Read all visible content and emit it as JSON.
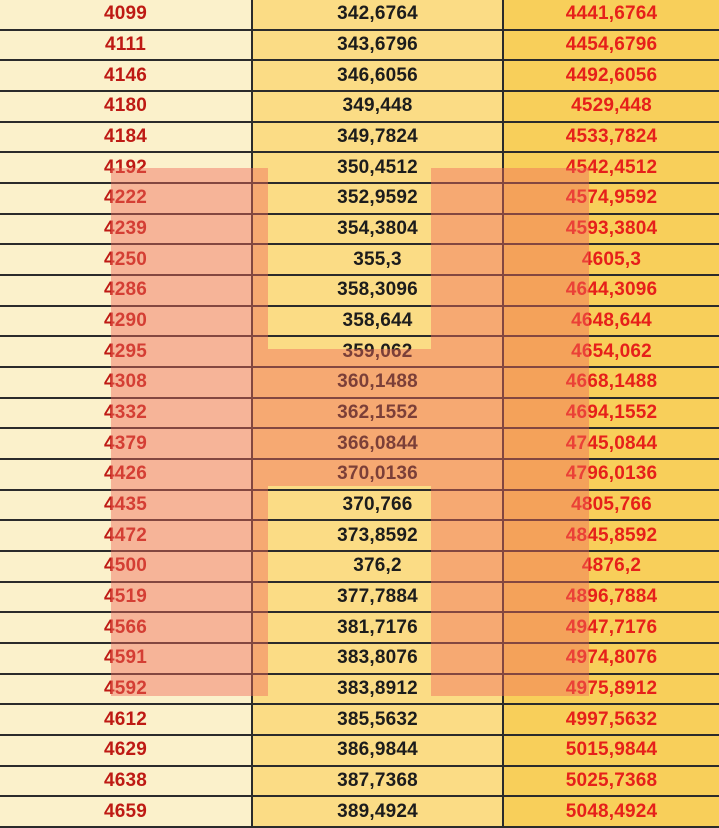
{
  "table": {
    "row_count": 27,
    "rows": [
      [
        "4099",
        "342,6764",
        "4441,6764"
      ],
      [
        "4111",
        "343,6796",
        "4454,6796"
      ],
      [
        "4146",
        "346,6056",
        "4492,6056"
      ],
      [
        "4180",
        "349,448",
        "4529,448"
      ],
      [
        "4184",
        "349,7824",
        "4533,7824"
      ],
      [
        "4192",
        "350,4512",
        "4542,4512"
      ],
      [
        "4222",
        "352,9592",
        "4574,9592"
      ],
      [
        "4239",
        "354,3804",
        "4593,3804"
      ],
      [
        "4250",
        "355,3",
        "4605,3"
      ],
      [
        "4286",
        "358,3096",
        "4644,3096"
      ],
      [
        "4290",
        "358,644",
        "4648,644"
      ],
      [
        "4295",
        "359,062",
        "4654,062"
      ],
      [
        "4308",
        "360,1488",
        "4668,1488"
      ],
      [
        "4332",
        "362,1552",
        "4694,1552"
      ],
      [
        "4379",
        "366,0844",
        "4745,0844"
      ],
      [
        "4426",
        "370,0136",
        "4796,0136"
      ],
      [
        "4435",
        "370,766",
        "4805,766"
      ],
      [
        "4472",
        "373,8592",
        "4845,8592"
      ],
      [
        "4500",
        "376,2",
        "4876,2"
      ],
      [
        "4519",
        "377,7884",
        "4896,7884"
      ],
      [
        "4566",
        "381,7176",
        "4947,7176"
      ],
      [
        "4591",
        "383,8076",
        "4974,8076"
      ],
      [
        "4592",
        "383,8912",
        "4975,8912"
      ],
      [
        "4612",
        "385,5632",
        "4997,5632"
      ],
      [
        "4629",
        "386,9844",
        "5015,9844"
      ],
      [
        "4638",
        "387,7368",
        "5025,7368"
      ],
      [
        "4659",
        "389,4924",
        "5048,4924"
      ]
    ]
  },
  "overlay": {
    "shape": "letter-H",
    "color": "#EF6A5C",
    "opacity": 0.45
  },
  "colors": {
    "column1_background": "#FBF1CB",
    "column2_background": "#FBDC85",
    "column3_background": "#F8CF5A",
    "column1_text": "#BE1A14",
    "column2_text": "#1C1C1C",
    "column3_text": "#E6201A",
    "grid_border": "#2B2B2B",
    "highlight_overlay": "#EF6A5C"
  }
}
